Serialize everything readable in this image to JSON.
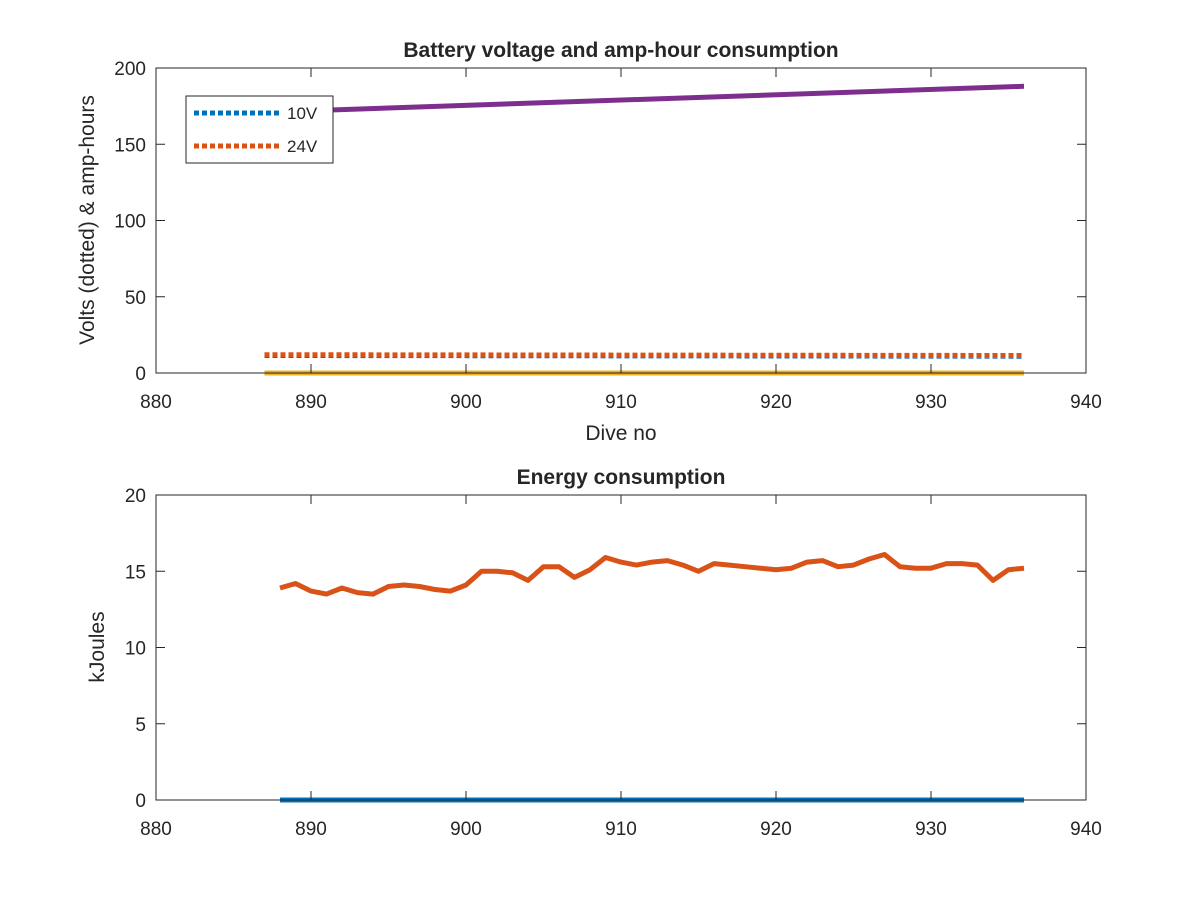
{
  "chart_data": [
    {
      "type": "line",
      "title": "Battery voltage and amp-hour consumption",
      "xlabel": "Dive no",
      "ylabel": "Volts (dotted) & amp-hours",
      "xlim": [
        880,
        940
      ],
      "ylim": [
        0,
        200
      ],
      "xticks": [
        880,
        890,
        900,
        910,
        920,
        930,
        940
      ],
      "yticks": [
        0,
        50,
        100,
        150,
        200
      ],
      "grid": false,
      "legend": "top-left",
      "series": [
        {
          "name": "10V",
          "style": "dotted",
          "color": "#0072BD",
          "x": [
            887,
            936
          ],
          "y": [
            11.5,
            11.0
          ]
        },
        {
          "name": "24V",
          "style": "dotted",
          "color": "#D95319",
          "x": [
            887,
            936
          ],
          "y": [
            12.0,
            11.5
          ]
        },
        {
          "style": "solid",
          "color": "#7E2F8E",
          "x": [
            887,
            936
          ],
          "y": [
            171,
            188
          ]
        },
        {
          "style": "solid",
          "color": "#EDB120",
          "x": [
            887,
            936
          ],
          "y": [
            0,
            0
          ]
        }
      ]
    },
    {
      "type": "line",
      "title": "Energy consumption",
      "xlabel": "",
      "ylabel": "kJoules",
      "xlim": [
        880,
        940
      ],
      "ylim": [
        0,
        20
      ],
      "xticks": [
        880,
        890,
        900,
        910,
        920,
        930,
        940
      ],
      "yticks": [
        0,
        5,
        10,
        15,
        20
      ],
      "grid": false,
      "series": [
        {
          "style": "solid",
          "color": "#0072BD",
          "x": [
            888,
            936
          ],
          "y": [
            0,
            0
          ]
        },
        {
          "style": "solid",
          "color": "#D95319",
          "x": [
            888,
            889,
            890,
            891,
            892,
            893,
            894,
            895,
            896,
            897,
            898,
            899,
            900,
            901,
            902,
            903,
            904,
            905,
            906,
            907,
            908,
            909,
            910,
            911,
            912,
            913,
            914,
            915,
            916,
            917,
            918,
            919,
            920,
            921,
            922,
            923,
            924,
            925,
            926,
            927,
            928,
            929,
            930,
            931,
            932,
            933,
            934,
            935,
            936
          ],
          "y": [
            13.9,
            14.2,
            13.7,
            13.5,
            13.9,
            13.6,
            13.5,
            14.0,
            14.1,
            14.0,
            13.8,
            13.7,
            14.1,
            15.0,
            15.0,
            14.9,
            14.4,
            15.3,
            15.3,
            14.6,
            15.1,
            15.9,
            15.6,
            15.4,
            15.6,
            15.7,
            15.4,
            15.0,
            15.5,
            15.4,
            15.3,
            15.2,
            15.1,
            15.2,
            15.6,
            15.7,
            15.3,
            15.4,
            15.8,
            16.1,
            15.3,
            15.2,
            15.2,
            15.5,
            15.5,
            15.4,
            14.4,
            15.1,
            15.2
          ]
        }
      ]
    }
  ]
}
